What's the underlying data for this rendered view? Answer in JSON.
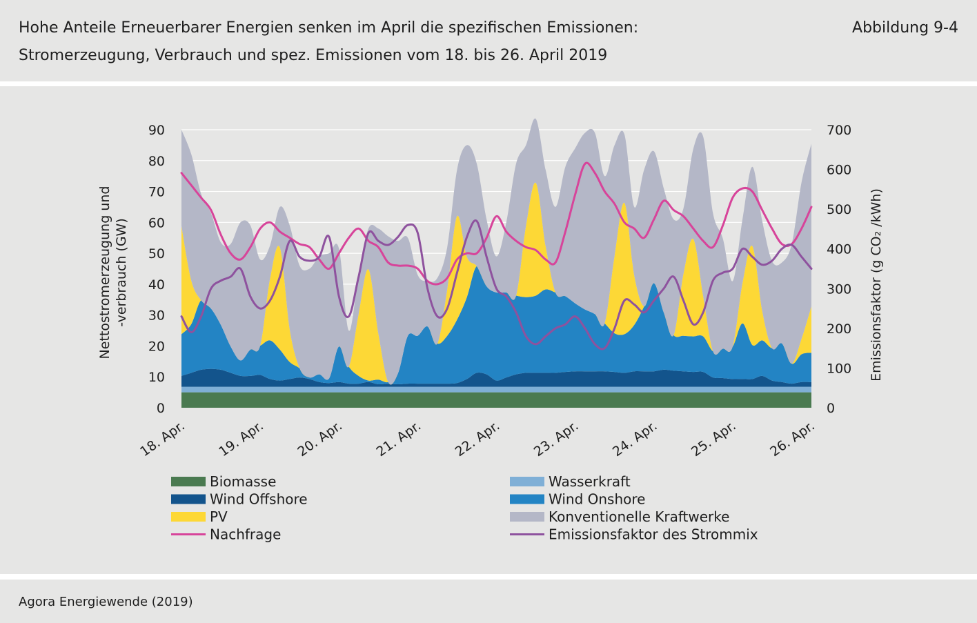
{
  "header": {
    "title_line1": "Hohe Anteile Erneuerbarer Energien senken im April die spezifischen Emissionen:",
    "title_line2": "Stromerzeugung, Verbrauch und spez. Emissionen vom 18. bis 26. April 2019",
    "figure_label": "Abbildung 9-4"
  },
  "footer": {
    "source": "Agora Energiewende (2019)"
  },
  "chart_data": {
    "type": "area",
    "x_unit": "hours since 18. Apr. 00:00 (3-hour steps)",
    "categories": [
      "18. Apr.",
      "19. Apr.",
      "20. Apr.",
      "21. Apr.",
      "22. Apr.",
      "23. Apr.",
      "24. Apr.",
      "25. Apr.",
      "26. Apr."
    ],
    "xlim": [
      0,
      192
    ],
    "ylabel": "Nettostromerzeugung und -verbrauch (GW)",
    "ylim": [
      0,
      90
    ],
    "yticks": [
      0,
      10,
      20,
      30,
      40,
      50,
      60,
      70,
      80,
      90
    ],
    "y2label": "Emissionsfaktor (g CO₂ /kWh)",
    "y2lim": [
      0,
      700
    ],
    "y2ticks": [
      0,
      100,
      200,
      300,
      400,
      500,
      600,
      700
    ],
    "legend_position": "bottom",
    "x": [
      0,
      3,
      6,
      9,
      12,
      15,
      18,
      21,
      24,
      27,
      30,
      33,
      36,
      39,
      42,
      45,
      48,
      51,
      54,
      57,
      60,
      63,
      66,
      69,
      72,
      75,
      78,
      81,
      84,
      87,
      90,
      93,
      96,
      99,
      102,
      105,
      108,
      111,
      114,
      117,
      120,
      123,
      126,
      129,
      132,
      135,
      138,
      141,
      144,
      147,
      150,
      153,
      156,
      159,
      162,
      165,
      168,
      171,
      174,
      177,
      180,
      183,
      186,
      189,
      192
    ],
    "stacked_series": [
      {
        "name": "Biomasse",
        "color": "#4a7a50",
        "values": [
          5,
          5,
          5,
          5,
          5,
          5,
          5,
          5,
          5,
          5,
          5,
          5,
          5,
          5,
          5,
          5,
          5,
          5,
          5,
          5,
          5,
          5,
          5,
          5,
          5,
          5,
          5,
          5,
          5,
          5,
          5,
          5,
          5,
          5,
          5,
          5,
          5,
          5,
          5,
          5,
          5,
          5,
          5,
          5,
          5,
          5,
          5,
          5,
          5,
          5,
          5,
          5,
          5,
          5,
          5,
          5,
          5,
          5,
          5,
          5,
          5,
          5,
          5,
          5,
          5
        ]
      },
      {
        "name": "Wasserkraft",
        "color": "#7fafd6",
        "values": [
          1.8,
          1.8,
          1.8,
          1.8,
          1.8,
          1.8,
          1.8,
          1.8,
          1.8,
          1.8,
          1.8,
          1.8,
          1.8,
          1.8,
          1.8,
          1.8,
          1.8,
          1.8,
          1.8,
          1.8,
          1.8,
          1.8,
          1.8,
          1.8,
          1.8,
          1.8,
          1.8,
          1.8,
          1.8,
          1.8,
          1.8,
          1.8,
          1.8,
          1.8,
          1.8,
          1.8,
          1.8,
          1.8,
          1.8,
          1.8,
          1.8,
          1.8,
          1.8,
          1.8,
          1.8,
          1.8,
          1.8,
          1.8,
          1.8,
          1.8,
          1.8,
          1.8,
          1.8,
          1.8,
          1.8,
          1.8,
          1.8,
          1.8,
          1.8,
          1.8,
          1.8,
          1.8,
          1.8,
          1.8,
          1.8
        ]
      },
      {
        "name": "Wind Offshore",
        "color": "#13548c",
        "values": [
          3.5,
          4.5,
          5.5,
          5.8,
          5.5,
          4.5,
          3.5,
          3.5,
          3.8,
          2.5,
          2.0,
          2.5,
          3.0,
          2.5,
          1.5,
          1.2,
          1.5,
          1.0,
          1.0,
          1.5,
          0.8,
          1.0,
          0.8,
          1.0,
          1.0,
          1.0,
          1.0,
          1.0,
          1.2,
          2.5,
          4.5,
          4.0,
          2.0,
          3.0,
          4.0,
          4.5,
          4.5,
          4.5,
          4.5,
          4.8,
          5.0,
          5.0,
          5.0,
          5.0,
          4.8,
          4.5,
          5.0,
          5.0,
          5.0,
          5.5,
          5.2,
          5.0,
          4.8,
          4.8,
          3.0,
          2.8,
          2.5,
          2.5,
          2.5,
          3.5,
          2.0,
          1.5,
          1.0,
          1.5,
          1.5
        ]
      },
      {
        "name": "Wind Onshore",
        "color": "#2384c4",
        "values": [
          13.5,
          15.8,
          22.5,
          19.5,
          14.5,
          8.5,
          5.0,
          8.5,
          9.5,
          12.5,
          10.0,
          5.5,
          3.0,
          0.5,
          2.5,
          1.5,
          11.5,
          5.5,
          2.5,
          0.5,
          1.5,
          0.5,
          3.5,
          15.5,
          15.5,
          18.5,
          13.0,
          15.5,
          20.5,
          26.5,
          34.5,
          28.5,
          28.5,
          27.5,
          25.5,
          24.5,
          25.0,
          27.0,
          26.0,
          24.5,
          22.0,
          20.0,
          18.5,
          15.5,
          12.5,
          12.5,
          15.0,
          21.0,
          28.5,
          18.5,
          11.5,
          11.5,
          11.5,
          11.5,
          8.5,
          9.5,
          10.5,
          18.0,
          11.0,
          11.5,
          10.5,
          12.5,
          6.5,
          9.0,
          9.5
        ]
      },
      {
        "name": "PV",
        "color": "#fdd836",
        "values": [
          35.0,
          14.0,
          0.0,
          0.0,
          0.0,
          0.0,
          0.0,
          0.0,
          0.0,
          20.0,
          33.0,
          10.5,
          0.0,
          0.0,
          0.0,
          0.0,
          0.0,
          0.0,
          20.0,
          36.0,
          15.0,
          0.0,
          0.0,
          0.0,
          0.0,
          0.0,
          0.0,
          15.0,
          33.5,
          13.0,
          0.0,
          0.0,
          0.0,
          0.0,
          0.0,
          23.0,
          36.5,
          14.0,
          0.0,
          0.0,
          0.0,
          0.0,
          0.0,
          0.0,
          25.0,
          42.5,
          16.0,
          0.0,
          0.0,
          0.0,
          0.0,
          20.0,
          31.5,
          13.0,
          0.0,
          0.0,
          0.0,
          13.0,
          32.0,
          9.5,
          0.0,
          0.0,
          0.0,
          5.0,
          15.0
        ]
      },
      {
        "name": "Konventionelle Kraftwerke",
        "color": "#b4b7c7",
        "values": [
          31.2,
          40.9,
          34.4,
          30.9,
          26.7,
          33.2,
          44.7,
          40.2,
          27.9,
          10.7,
          13.2,
          33.7,
          33.2,
          35.2,
          38.2,
          40.5,
          31.7,
          11.7,
          12.7,
          13.2,
          33.9,
          47.2,
          42.9,
          31.7,
          19.7,
          14.7,
          21.2,
          13.7,
          15.0,
          36.2,
          33.2,
          21.7,
          11.7,
          22.7,
          42.7,
          26.2,
          20.7,
          24.7,
          27.7,
          41.9,
          50.2,
          57.2,
          58.7,
          47.7,
          35.9,
          22.2,
          22.2,
          44.2,
          42.7,
          40.2,
          37.5,
          21.2,
          29.2,
          51.7,
          44.7,
          35.7,
          21.2,
          20.7,
          25.7,
          29.2,
          28.2,
          26.2,
          38.7,
          50.7,
          52.7
        ]
      }
    ],
    "line_series": [
      {
        "name": "Nachfrage",
        "color": "#d7449a",
        "axis": "left",
        "values": [
          76,
          72,
          68,
          64,
          56,
          50,
          48,
          52,
          58,
          60,
          57,
          55,
          53,
          52,
          48,
          45,
          50,
          55,
          58,
          54,
          52,
          47,
          46,
          46,
          45,
          41,
          40,
          42,
          48,
          50,
          50,
          55,
          62,
          57,
          54,
          52,
          51,
          48,
          47,
          57,
          69,
          79,
          76,
          70,
          66,
          60,
          58,
          55,
          61,
          67,
          64,
          62,
          58,
          54,
          52,
          59,
          68,
          71,
          70,
          64,
          58,
          53,
          53,
          58,
          65
        ]
      },
      {
        "name": "Emissionsfaktor des Strommix",
        "color": "#8e529e",
        "axis": "right",
        "values": [
          230,
          190,
          230,
          300,
          320,
          330,
          350,
          280,
          250,
          270,
          330,
          420,
          380,
          370,
          380,
          430,
          280,
          230,
          330,
          440,
          420,
          410,
          430,
          460,
          440,
          300,
          230,
          250,
          340,
          430,
          470,
          380,
          300,
          280,
          240,
          180,
          160,
          180,
          200,
          210,
          230,
          200,
          160,
          150,
          200,
          270,
          260,
          240,
          270,
          300,
          330,
          270,
          210,
          240,
          320,
          340,
          350,
          400,
          380,
          360,
          370,
          400,
          410,
          380,
          350
        ]
      }
    ]
  },
  "legend": {
    "items": [
      {
        "label": "Biomasse",
        "color": "#4a7a50",
        "kind": "patch"
      },
      {
        "label": "Wasserkraft",
        "color": "#7fafd6",
        "kind": "patch"
      },
      {
        "label": "Wind Offshore",
        "color": "#13548c",
        "kind": "patch"
      },
      {
        "label": "Wind Onshore",
        "color": "#2384c4",
        "kind": "patch"
      },
      {
        "label": "PV",
        "color": "#fdd836",
        "kind": "patch"
      },
      {
        "label": "Konventionelle Kraftwerke",
        "color": "#b4b7c7",
        "kind": "patch"
      },
      {
        "label": "Nachfrage",
        "color": "#d7449a",
        "kind": "line"
      },
      {
        "label": "Emissionsfaktor des Strommix",
        "color": "#8e529e",
        "kind": "line"
      }
    ]
  }
}
